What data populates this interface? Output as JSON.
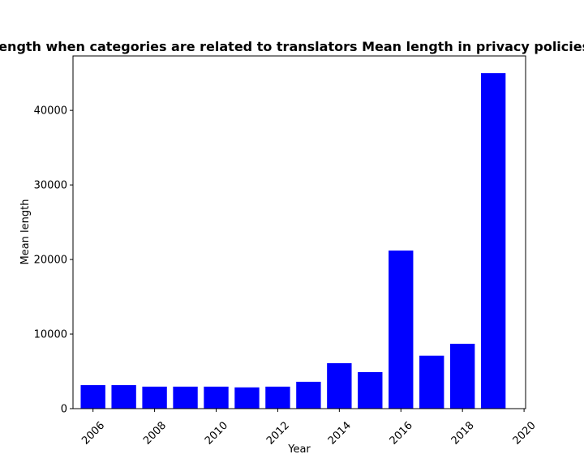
{
  "chart_data": {
    "type": "bar",
    "title": "Mean length when categories are related to translators Mean length in privacy policies by Year",
    "xlabel": "Year",
    "ylabel": "Mean length",
    "x": [
      2006,
      2007,
      2008,
      2009,
      2010,
      2011,
      2012,
      2013,
      2014,
      2015,
      2016,
      2017,
      2018,
      2019
    ],
    "values": [
      3150,
      3150,
      2950,
      2950,
      2950,
      2850,
      2950,
      3600,
      6100,
      4900,
      21200,
      7100,
      8700,
      45000
    ],
    "xlim": [
      2005.35,
      2020.05
    ],
    "ylim": [
      0,
      47300
    ],
    "xticks": [
      2006,
      2008,
      2010,
      2012,
      2014,
      2016,
      2018,
      2020
    ],
    "xtick_labels": [
      "2006",
      "2008",
      "2010",
      "2012",
      "2014",
      "2016",
      "2018",
      "2020"
    ],
    "yticks": [
      0,
      10000,
      20000,
      30000,
      40000
    ],
    "ytick_labels": [
      "0",
      "10000",
      "20000",
      "30000",
      "40000"
    ],
    "bar_color": "#0000ff",
    "grid": false
  }
}
